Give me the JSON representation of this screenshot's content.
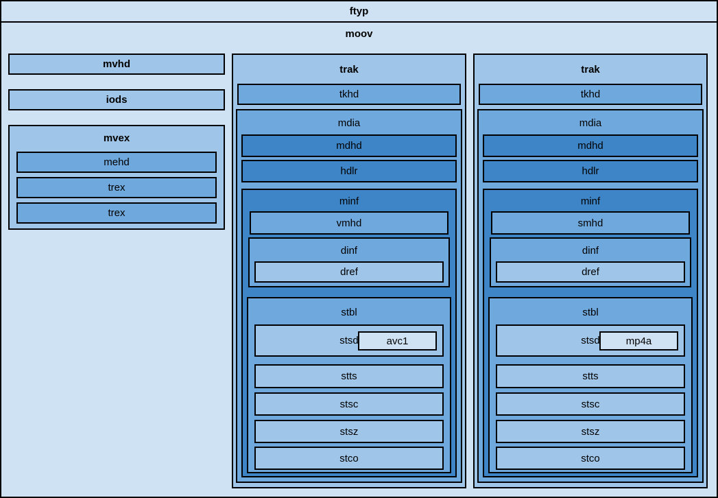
{
  "palette": {
    "fill_lightest": "#cfe2f3",
    "fill_light": "#9fc5e8",
    "fill_medium": "#6fa8dc",
    "fill_dark": "#3d85c6",
    "border": "#000000"
  },
  "ftyp": {
    "label": "ftyp"
  },
  "moov": {
    "label": "moov",
    "left": {
      "mvhd": "mvhd",
      "iods": "iods",
      "mvex": {
        "label": "mvex",
        "children": [
          "mehd",
          "trex",
          "trex"
        ]
      }
    },
    "traks": [
      {
        "label": "trak",
        "tkhd": "tkhd",
        "mdia": {
          "label": "mdia",
          "mdhd": "mdhd",
          "hdlr": "hdlr",
          "minf": {
            "label": "minf",
            "media_header": "vmhd",
            "dinf": {
              "label": "dinf",
              "dref": "dref"
            },
            "stbl": {
              "label": "stbl",
              "stsd": {
                "label": "stsd",
                "sample_entry": "avc1"
              },
              "tables": [
                "stts",
                "stsc",
                "stsz",
                "stco"
              ]
            }
          }
        }
      },
      {
        "label": "trak",
        "tkhd": "tkhd",
        "mdia": {
          "label": "mdia",
          "mdhd": "mdhd",
          "hdlr": "hdlr",
          "minf": {
            "label": "minf",
            "media_header": "smhd",
            "dinf": {
              "label": "dinf",
              "dref": "dref"
            },
            "stbl": {
              "label": "stbl",
              "stsd": {
                "label": "stsd",
                "sample_entry": "mp4a"
              },
              "tables": [
                "stts",
                "stsc",
                "stsz",
                "stco"
              ]
            }
          }
        }
      }
    ]
  }
}
